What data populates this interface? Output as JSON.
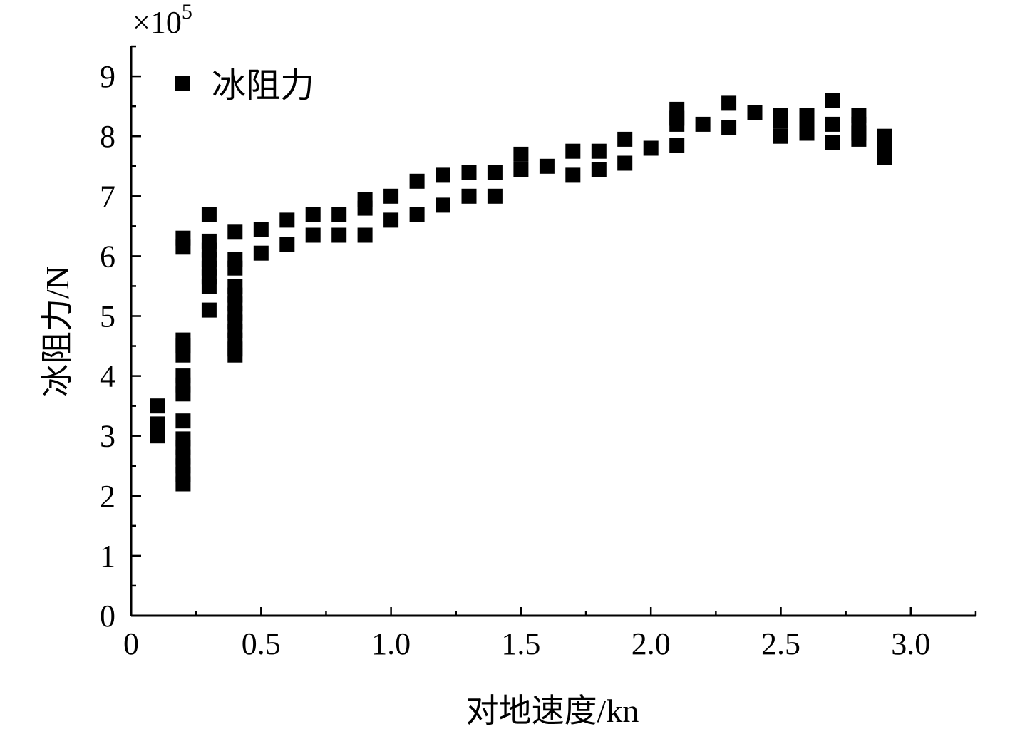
{
  "chart_data": {
    "type": "scatter",
    "xlabel": "对地速度/kn",
    "ylabel": "冰阻力/N",
    "y_multiplier": {
      "base": "×10",
      "exponent": "5"
    },
    "xlim": [
      0,
      3.25
    ],
    "ylim": [
      0,
      9.5
    ],
    "x_ticks": [
      {
        "value": 0,
        "label": "0"
      },
      {
        "value": 0.5,
        "label": "0.5"
      },
      {
        "value": 1.0,
        "label": "1.0"
      },
      {
        "value": 1.5,
        "label": "1.5"
      },
      {
        "value": 2.0,
        "label": "2.0"
      },
      {
        "value": 2.5,
        "label": "2.5"
      },
      {
        "value": 3.0,
        "label": "3.0"
      }
    ],
    "x_minor_step": 0.25,
    "y_ticks": [
      {
        "value": 0,
        "label": "0"
      },
      {
        "value": 1,
        "label": "1"
      },
      {
        "value": 2,
        "label": "2"
      },
      {
        "value": 3,
        "label": "3"
      },
      {
        "value": 4,
        "label": "4"
      },
      {
        "value": 5,
        "label": "5"
      },
      {
        "value": 6,
        "label": "6"
      },
      {
        "value": 7,
        "label": "7"
      },
      {
        "value": 8,
        "label": "8"
      },
      {
        "value": 9,
        "label": "9"
      }
    ],
    "y_minor_step": 0.5,
    "grid": false,
    "legend": {
      "position": "top-left",
      "marker": "square"
    },
    "marker_color": "#000000",
    "series": [
      {
        "name": "冰阻力",
        "marker": "square",
        "points": [
          [
            0.1,
            3.5
          ],
          [
            0.1,
            3.2
          ],
          [
            0.1,
            3.1
          ],
          [
            0.1,
            3.0
          ],
          [
            0.2,
            6.3
          ],
          [
            0.2,
            6.15
          ],
          [
            0.2,
            4.6
          ],
          [
            0.2,
            4.5
          ],
          [
            0.2,
            4.35
          ],
          [
            0.2,
            4.0
          ],
          [
            0.2,
            3.85
          ],
          [
            0.2,
            3.7
          ],
          [
            0.2,
            3.25
          ],
          [
            0.2,
            2.95
          ],
          [
            0.2,
            2.8
          ],
          [
            0.2,
            2.65
          ],
          [
            0.2,
            2.5
          ],
          [
            0.2,
            2.35
          ],
          [
            0.2,
            2.2
          ],
          [
            0.3,
            6.7
          ],
          [
            0.3,
            6.25
          ],
          [
            0.3,
            6.1
          ],
          [
            0.3,
            5.95
          ],
          [
            0.3,
            5.8
          ],
          [
            0.3,
            5.65
          ],
          [
            0.3,
            5.5
          ],
          [
            0.3,
            5.1
          ],
          [
            0.4,
            6.4
          ],
          [
            0.4,
            5.95
          ],
          [
            0.4,
            5.8
          ],
          [
            0.4,
            5.5
          ],
          [
            0.4,
            5.35
          ],
          [
            0.4,
            5.2
          ],
          [
            0.4,
            5.05
          ],
          [
            0.4,
            4.9
          ],
          [
            0.4,
            4.75
          ],
          [
            0.4,
            4.6
          ],
          [
            0.4,
            4.45
          ],
          [
            0.4,
            4.35
          ],
          [
            0.5,
            6.45
          ],
          [
            0.5,
            6.05
          ],
          [
            0.6,
            6.6
          ],
          [
            0.6,
            6.2
          ],
          [
            0.7,
            6.7
          ],
          [
            0.7,
            6.35
          ],
          [
            0.8,
            6.7
          ],
          [
            0.8,
            6.35
          ],
          [
            0.9,
            6.95
          ],
          [
            0.9,
            6.8
          ],
          [
            0.9,
            6.35
          ],
          [
            1.0,
            7.0
          ],
          [
            1.0,
            6.6
          ],
          [
            1.1,
            7.25
          ],
          [
            1.1,
            6.7
          ],
          [
            1.2,
            7.35
          ],
          [
            1.2,
            6.85
          ],
          [
            1.3,
            7.4
          ],
          [
            1.3,
            7.0
          ],
          [
            1.4,
            7.4
          ],
          [
            1.4,
            7.0
          ],
          [
            1.5,
            7.7
          ],
          [
            1.5,
            7.45
          ],
          [
            1.6,
            7.5
          ],
          [
            1.7,
            7.75
          ],
          [
            1.7,
            7.35
          ],
          [
            1.8,
            7.75
          ],
          [
            1.8,
            7.45
          ],
          [
            1.9,
            7.95
          ],
          [
            1.9,
            7.55
          ],
          [
            2.0,
            7.8
          ],
          [
            2.1,
            8.45
          ],
          [
            2.1,
            8.3
          ],
          [
            2.1,
            8.2
          ],
          [
            2.1,
            7.85
          ],
          [
            2.2,
            8.2
          ],
          [
            2.3,
            8.55
          ],
          [
            2.3,
            8.15
          ],
          [
            2.4,
            8.4
          ],
          [
            2.5,
            8.35
          ],
          [
            2.5,
            8.25
          ],
          [
            2.5,
            8.0
          ],
          [
            2.6,
            8.35
          ],
          [
            2.6,
            8.25
          ],
          [
            2.6,
            8.15
          ],
          [
            2.6,
            8.05
          ],
          [
            2.7,
            8.6
          ],
          [
            2.7,
            8.2
          ],
          [
            2.7,
            7.9
          ],
          [
            2.8,
            8.35
          ],
          [
            2.8,
            8.2
          ],
          [
            2.8,
            8.05
          ],
          [
            2.8,
            7.95
          ],
          [
            2.9,
            8.0
          ],
          [
            2.9,
            7.85
          ],
          [
            2.9,
            7.75
          ],
          [
            2.9,
            7.65
          ]
        ]
      }
    ]
  }
}
